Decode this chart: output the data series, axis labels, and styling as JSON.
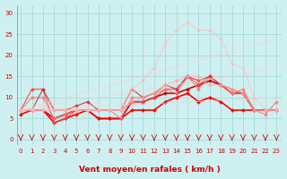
{
  "xlabel": "Vent moyen/en rafales ( km/h )",
  "background_color": "#cff0f0",
  "grid_color": "#aadddd",
  "x_ticks": [
    0,
    1,
    2,
    3,
    4,
    5,
    6,
    7,
    8,
    9,
    10,
    11,
    12,
    13,
    14,
    15,
    16,
    17,
    18,
    19,
    20,
    21,
    22,
    23
  ],
  "y_ticks": [
    0,
    5,
    10,
    15,
    20,
    25,
    30
  ],
  "ylim": [
    -1,
    32
  ],
  "xlim": [
    -0.3,
    23.5
  ],
  "series": [
    {
      "x": [
        0,
        1,
        2,
        3,
        4,
        5,
        6,
        7,
        8,
        9,
        10,
        11,
        12,
        13,
        14,
        15,
        16,
        17,
        18,
        19,
        20,
        21,
        22,
        23
      ],
      "y": [
        7,
        7,
        7,
        5,
        6,
        7,
        7,
        5,
        5,
        5,
        9,
        9,
        10,
        11,
        11,
        12,
        13,
        14,
        13,
        11,
        11,
        7,
        7,
        7
      ],
      "color": "#cc0000",
      "lw": 1.2,
      "marker": "D",
      "ms": 2.0,
      "alpha": 1.0
    },
    {
      "x": [
        0,
        1,
        2,
        3,
        4,
        5,
        6,
        7,
        8,
        9,
        10,
        11,
        12,
        13,
        14,
        15,
        16,
        17,
        18,
        19,
        20,
        21,
        22,
        23
      ],
      "y": [
        6,
        7,
        7,
        4,
        5,
        6,
        7,
        5,
        5,
        5,
        7,
        7,
        7,
        9,
        10,
        11,
        9,
        10,
        9,
        7,
        7,
        7,
        7,
        7
      ],
      "color": "#ff0000",
      "lw": 1.2,
      "marker": "D",
      "ms": 2.0,
      "alpha": 1.0
    },
    {
      "x": [
        0,
        1,
        2,
        3,
        4,
        5,
        6,
        7,
        8,
        9,
        10,
        11,
        12,
        13,
        14,
        15,
        16,
        17,
        18,
        19,
        20,
        21,
        22,
        23
      ],
      "y": [
        7,
        12,
        12,
        4,
        5,
        7,
        7,
        7,
        7,
        7,
        9,
        9,
        10,
        12,
        12,
        15,
        13,
        15,
        13,
        11,
        11,
        7,
        7,
        7
      ],
      "color": "#ff4444",
      "lw": 0.9,
      "marker": "D",
      "ms": 2.0,
      "alpha": 0.85
    },
    {
      "x": [
        0,
        1,
        2,
        3,
        4,
        5,
        6,
        7,
        8,
        9,
        10,
        11,
        12,
        13,
        14,
        15,
        16,
        17,
        18,
        19,
        20,
        21,
        22,
        23
      ],
      "y": [
        7,
        10,
        10,
        5,
        6,
        7,
        7,
        7,
        7,
        5,
        10,
        10,
        11,
        12,
        11,
        15,
        12,
        15,
        13,
        11,
        12,
        7,
        6,
        9
      ],
      "color": "#ff7777",
      "lw": 0.9,
      "marker": "D",
      "ms": 2.0,
      "alpha": 0.8
    },
    {
      "x": [
        0,
        1,
        2,
        3,
        4,
        5,
        6,
        7,
        8,
        9,
        10,
        11,
        12,
        13,
        14,
        15,
        16,
        17,
        18,
        19,
        20,
        21,
        22,
        23
      ],
      "y": [
        7,
        7,
        12,
        7,
        7,
        8,
        9,
        7,
        7,
        7,
        12,
        10,
        11,
        13,
        12,
        15,
        14,
        15,
        13,
        12,
        11,
        7,
        7,
        7
      ],
      "color": "#cc3333",
      "lw": 0.9,
      "marker": "D",
      "ms": 2.0,
      "alpha": 0.85
    },
    {
      "x": [
        0,
        1,
        2,
        3,
        4,
        5,
        6,
        7,
        8,
        9,
        10,
        11,
        12,
        13,
        14,
        15,
        16,
        17,
        18,
        19,
        20,
        21,
        22,
        23
      ],
      "y": [
        7,
        7,
        7,
        7,
        7,
        7,
        7,
        7,
        7,
        7,
        9,
        10,
        11,
        13,
        14,
        15,
        15,
        13,
        13,
        12,
        11,
        7,
        7,
        7
      ],
      "color": "#ffaaaa",
      "lw": 0.9,
      "marker": "D",
      "ms": 2.0,
      "alpha": 0.7
    },
    {
      "x": [
        0,
        1,
        2,
        3,
        4,
        5,
        6,
        7,
        8,
        9,
        10,
        11,
        12,
        13,
        14,
        15,
        16,
        17,
        18,
        19,
        20,
        21,
        22,
        23
      ],
      "y": [
        7,
        7,
        7,
        7,
        7,
        7,
        7,
        7,
        7,
        7,
        12,
        14,
        17,
        23,
        26,
        28,
        26,
        26,
        24,
        18,
        17,
        10,
        7,
        7
      ],
      "color": "#ffbbbb",
      "lw": 0.9,
      "marker": "D",
      "ms": 2.0,
      "alpha": 0.6
    },
    {
      "x": [
        0,
        23
      ],
      "y": [
        7,
        24
      ],
      "color": "#ffcccc",
      "lw": 0.9,
      "marker": null,
      "ms": 0,
      "alpha": 0.55
    },
    {
      "x": [
        0,
        23
      ],
      "y": [
        7,
        17
      ],
      "color": "#ffcccc",
      "lw": 0.9,
      "marker": null,
      "ms": 0,
      "alpha": 0.55
    },
    {
      "x": [
        0,
        23
      ],
      "y": [
        7,
        10
      ],
      "color": "#ffcccc",
      "lw": 0.9,
      "marker": null,
      "ms": 0,
      "alpha": 0.55
    }
  ],
  "arrow_color": "#cc0000",
  "tick_fontsize": 5.0,
  "xlabel_fontsize": 6.5,
  "tick_color": "#cc0000"
}
